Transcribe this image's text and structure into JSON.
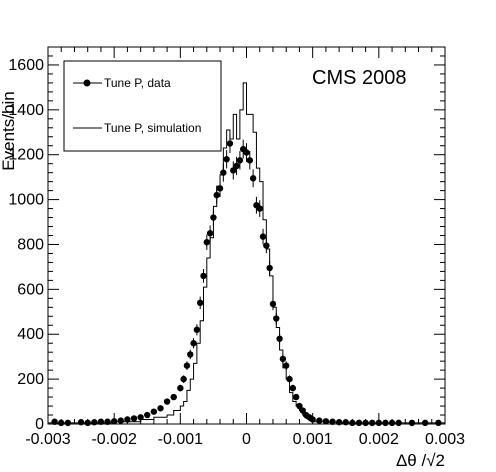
{
  "chart_data": {
    "type": "histogram",
    "label": "CMS 2008",
    "ylabel": "Events/bin",
    "xlabel": "Δθ /√2",
    "xlim": [
      -0.003,
      0.003
    ],
    "ylim": [
      0,
      1680
    ],
    "x_ticks": [
      -0.003,
      -0.002,
      -0.001,
      0,
      0.001,
      0.002,
      0.003
    ],
    "x_tick_labels": [
      "-0.003",
      "-0.002",
      "-0.001",
      "0",
      "0.001",
      "0.002",
      "0.003"
    ],
    "y_ticks": [
      0,
      200,
      400,
      600,
      800,
      1000,
      1200,
      1400,
      1600
    ],
    "y_tick_labels": [
      "0",
      "200",
      "400",
      "600",
      "800",
      "1000",
      "1200",
      "1400",
      "1600"
    ],
    "legend": {
      "placement": "top-left",
      "entries": [
        {
          "label": "Tune P, data",
          "style": "marker"
        },
        {
          "label": "Tune P, simulation",
          "style": "line"
        }
      ]
    },
    "series": [
      {
        "name": "Tune P, data",
        "kind": "points",
        "x": [
          -0.0029,
          -0.0028,
          -0.0027,
          -0.0025,
          -0.0024,
          -0.0023,
          -0.0022,
          -0.0021,
          -0.002,
          -0.0019,
          -0.0018,
          -0.0017,
          -0.0016,
          -0.0015,
          -0.0014,
          -0.0013,
          -0.0012,
          -0.0011,
          -0.001,
          -0.00095,
          -0.0009,
          -0.00085,
          -0.0008,
          -0.00075,
          -0.0007,
          -0.00065,
          -0.0006,
          -0.00055,
          -0.0005,
          -0.00045,
          -0.0004,
          -0.00035,
          -0.0003,
          -0.00025,
          -0.0002,
          -0.00015,
          -0.0001,
          -5e-05,
          0.0,
          5e-05,
          0.0001,
          0.00015,
          0.0002,
          0.00025,
          0.0003,
          0.00035,
          0.0004,
          0.00045,
          0.0005,
          0.00055,
          0.0006,
          0.00065,
          0.0007,
          0.00075,
          0.0008,
          0.00085,
          0.0009,
          0.00095,
          0.001,
          0.0011,
          0.0012,
          0.0013,
          0.0014,
          0.0015,
          0.0016,
          0.0017,
          0.0018,
          0.0019,
          0.002,
          0.0021,
          0.0022,
          0.0023,
          0.0025,
          0.0027,
          0.0029
        ],
        "y": [
          10,
          5,
          5,
          8,
          5,
          8,
          10,
          10,
          12,
          15,
          20,
          25,
          30,
          40,
          55,
          70,
          100,
          120,
          160,
          200,
          260,
          310,
          360,
          420,
          540,
          660,
          810,
          850,
          920,
          1020,
          1050,
          1120,
          1180,
          1250,
          1130,
          1150,
          1175,
          1225,
          1210,
          1175,
          1095,
          975,
          960,
          835,
          795,
          695,
          535,
          470,
          380,
          290,
          260,
          200,
          160,
          120,
          80,
          60,
          40,
          30,
          20,
          15,
          12,
          10,
          8,
          8,
          5,
          5,
          5,
          5,
          5,
          5,
          5,
          5,
          5,
          5,
          5
        ]
      },
      {
        "name": "Tune P, simulation",
        "kind": "step",
        "bin_edges": [
          -0.003,
          -0.002,
          -0.0016,
          -0.0014,
          -0.0012,
          -0.0011,
          -0.001,
          -0.00095,
          -0.0009,
          -0.00085,
          -0.0008,
          -0.00075,
          -0.0007,
          -0.00065,
          -0.0006,
          -0.00055,
          -0.0005,
          -0.00045,
          -0.0004,
          -0.00035,
          -0.0003,
          -0.00025,
          -0.0002,
          -0.00015,
          -0.0001,
          -5e-05,
          0.0,
          5e-05,
          0.0001,
          0.00015,
          0.0002,
          0.00025,
          0.0003,
          0.00035,
          0.0004,
          0.00045,
          0.0005,
          0.00055,
          0.0006,
          0.00065,
          0.0007,
          0.00075,
          0.0008,
          0.00085,
          0.0009,
          0.00095,
          0.001,
          0.0012,
          0.0014,
          0.0016,
          0.002,
          0.003
        ],
        "values": [
          5,
          10,
          20,
          30,
          40,
          60,
          80,
          100,
          150,
          200,
          270,
          360,
          460,
          610,
          740,
          830,
          970,
          1060,
          1110,
          1230,
          1310,
          1270,
          1380,
          1270,
          1400,
          1520,
          1380,
          1380,
          1300,
          1140,
          1080,
          910,
          780,
          660,
          520,
          430,
          330,
          250,
          200,
          140,
          100,
          80,
          60,
          40,
          25,
          15,
          10,
          8,
          5,
          5,
          5
        ]
      }
    ]
  }
}
